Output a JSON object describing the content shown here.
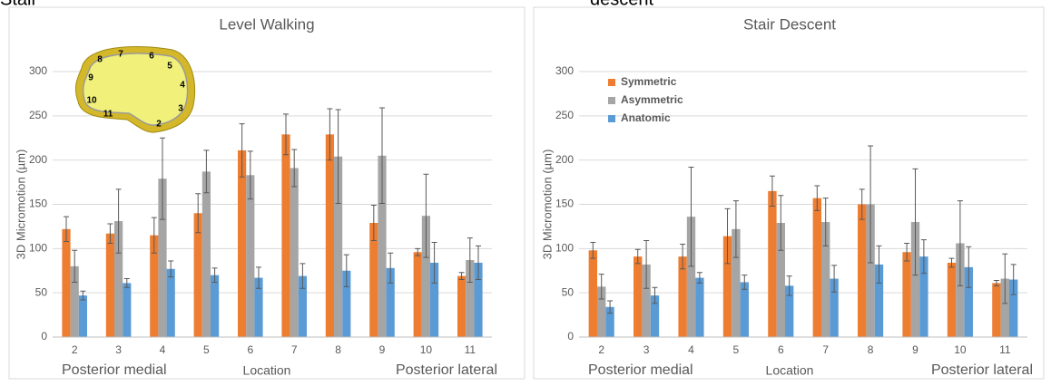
{
  "caption_fragments": [
    "Stair",
    "descent"
  ],
  "chart_data": [
    {
      "type": "bar",
      "title": "Level Walking",
      "x_label": "Location",
      "y_label": "3D Micromotion (µm)",
      "annotations": [
        "Posterior medial",
        "Posterior lateral"
      ],
      "inset_labels": [
        "2",
        "3",
        "4",
        "5",
        "6",
        "7",
        "8",
        "9",
        "10",
        "11"
      ],
      "categories": [
        "2",
        "3",
        "4",
        "5",
        "6",
        "7",
        "8",
        "9",
        "10",
        "11"
      ],
      "series": [
        {
          "color": "#ed7d31",
          "values": [
            122,
            117,
            115,
            140,
            211,
            229,
            229,
            129,
            96,
            69
          ],
          "errors": [
            14,
            11,
            20,
            22,
            30,
            23,
            29,
            20,
            4,
            4
          ]
        },
        {
          "color": "#a5a5a5",
          "values": [
            80,
            131,
            179,
            187,
            183,
            191,
            204,
            205,
            137,
            87
          ],
          "errors": [
            18,
            36,
            46,
            24,
            27,
            21,
            53,
            54,
            47,
            25
          ]
        },
        {
          "color": "#5b9bd5",
          "values": [
            47,
            61,
            77,
            70,
            67,
            69,
            75,
            78,
            84,
            84
          ],
          "errors": [
            5,
            5,
            9,
            8,
            12,
            14,
            18,
            17,
            23,
            19
          ]
        }
      ],
      "ylim": [
        0,
        300
      ],
      "yticks": [
        0,
        50,
        100,
        150,
        200,
        250,
        300
      ],
      "grid": true,
      "legend": false
    },
    {
      "type": "bar",
      "title": "Stair Descent",
      "x_label": "Location",
      "y_label": "3D Micromotion (µm)",
      "annotations": [
        "Posterior medial",
        "Posterior lateral"
      ],
      "categories": [
        "2",
        "3",
        "4",
        "5",
        "6",
        "7",
        "8",
        "9",
        "10",
        "11"
      ],
      "series": [
        {
          "name": "Symmetric",
          "color": "#ed7d31",
          "values": [
            98,
            91,
            91,
            114,
            165,
            157,
            150,
            96,
            84,
            61
          ],
          "errors": [
            9,
            8,
            14,
            31,
            17,
            14,
            17,
            10,
            5,
            3
          ]
        },
        {
          "name": "Asymmetric",
          "color": "#a5a5a5",
          "values": [
            57,
            82,
            136,
            122,
            129,
            130,
            150,
            130,
            106,
            66
          ],
          "errors": [
            14,
            27,
            56,
            32,
            31,
            27,
            66,
            60,
            48,
            28
          ]
        },
        {
          "name": "Anatomic",
          "color": "#5b9bd5",
          "values": [
            34,
            47,
            67,
            62,
            58,
            66,
            82,
            91,
            79,
            65
          ],
          "errors": [
            7,
            9,
            6,
            8,
            11,
            15,
            21,
            19,
            23,
            17
          ]
        }
      ],
      "ylim": [
        0,
        300
      ],
      "yticks": [
        0,
        50,
        100,
        150,
        200,
        250,
        300
      ],
      "grid": true,
      "legend": "upper left"
    }
  ]
}
